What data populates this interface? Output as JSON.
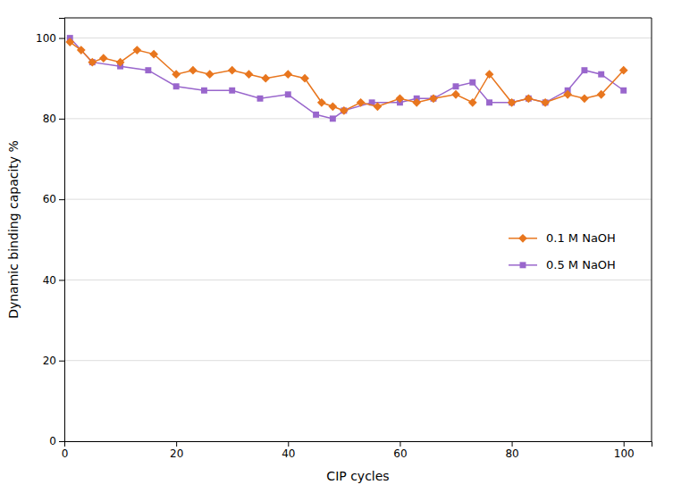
{
  "chart_data": {
    "type": "line",
    "xlabel": "CIP cycles",
    "ylabel": "Dynamic binding capacity %",
    "series": [
      {
        "name": "0.1 M NaOH",
        "color": "#E8761E",
        "marker": "diamond",
        "x": [
          1,
          3,
          5,
          7,
          10,
          13,
          16,
          20,
          23,
          26,
          30,
          33,
          36,
          40,
          43,
          46,
          48,
          50,
          53,
          56,
          60,
          63,
          66,
          70,
          73,
          76,
          80,
          83,
          86,
          90,
          93,
          96,
          100
        ],
        "values": [
          99,
          97,
          94,
          95,
          94,
          97,
          96,
          91,
          92,
          91,
          92,
          91,
          90,
          91,
          90,
          84,
          83,
          82,
          84,
          83,
          85,
          84,
          85,
          86,
          84,
          91,
          84,
          85,
          84,
          86,
          85,
          86,
          92
        ]
      },
      {
        "name": "0.5 M NaOH",
        "color": "#9966CC",
        "marker": "square",
        "x": [
          1,
          5,
          10,
          15,
          20,
          25,
          30,
          35,
          40,
          45,
          48,
          50,
          55,
          60,
          63,
          66,
          70,
          73,
          76,
          80,
          83,
          86,
          90,
          93,
          96,
          100
        ],
        "values": [
          100,
          94,
          93,
          92,
          88,
          87,
          87,
          85,
          86,
          81,
          80,
          82,
          84,
          84,
          85,
          85,
          88,
          89,
          84,
          84,
          85,
          84,
          87,
          92,
          91,
          87
        ]
      }
    ],
    "xlim": [
      0,
      105
    ],
    "ylim": [
      0,
      105
    ],
    "xticks": [
      0,
      20,
      40,
      60,
      80,
      100
    ],
    "yticks": [
      0,
      20,
      40,
      60,
      80,
      100
    ],
    "grid": "y",
    "legend": "right"
  }
}
